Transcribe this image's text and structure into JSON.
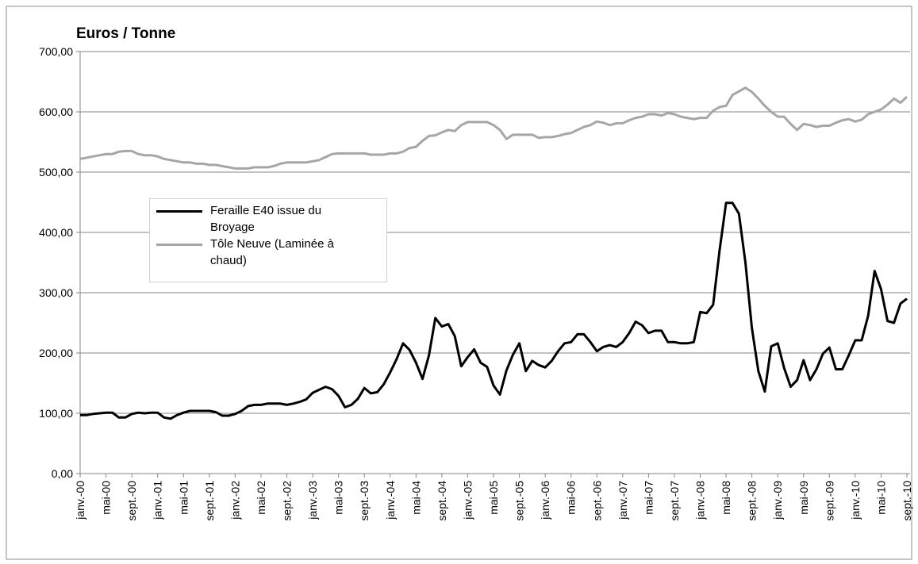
{
  "chart_data": {
    "type": "line",
    "title": "Euros / Tonne",
    "categories": [
      "janv.-00",
      null,
      null,
      null,
      "mai-00",
      null,
      null,
      null,
      "sept.-00",
      null,
      null,
      null,
      "janv.-01",
      null,
      null,
      null,
      "mai-01",
      null,
      null,
      null,
      "sept.-01",
      null,
      null,
      null,
      "janv.-02",
      null,
      null,
      null,
      "mai-02",
      null,
      null,
      null,
      "sept.-02",
      null,
      null,
      null,
      "janv.-03",
      null,
      null,
      null,
      "mai-03",
      null,
      null,
      null,
      "sept.-03",
      null,
      null,
      null,
      "janv.-04",
      null,
      null,
      null,
      "mai-04",
      null,
      null,
      null,
      "sept.-04",
      null,
      null,
      null,
      "janv.-05",
      null,
      null,
      null,
      "mai-05",
      null,
      null,
      null,
      "sept.-05",
      null,
      null,
      null,
      "janv.-06",
      null,
      null,
      null,
      "mai-06",
      null,
      null,
      null,
      "sept.-06",
      null,
      null,
      null,
      "janv.-07",
      null,
      null,
      null,
      "mai-07",
      null,
      null,
      null,
      "sept.-07",
      null,
      null,
      null,
      "janv.-08",
      null,
      null,
      null,
      "mai-08",
      null,
      null,
      null,
      "sept.-08",
      null,
      null,
      null,
      "janv.-09",
      null,
      null,
      null,
      "mai-09",
      null,
      null,
      null,
      "sept.-09",
      null,
      null,
      null,
      "janv.-10",
      null,
      null,
      null,
      "mai-10",
      null,
      null,
      null,
      "sept.-10"
    ],
    "series": [
      {
        "name": "Feraille E40 issue du Broyage",
        "color": "#000000",
        "values": [
          97,
          97,
          99,
          100,
          101,
          101,
          93,
          93,
          99,
          101,
          100,
          101,
          101,
          93,
          91,
          97,
          101,
          104,
          104,
          104,
          104,
          102,
          96,
          96,
          99,
          104,
          112,
          114,
          114,
          116,
          116,
          116,
          114,
          116,
          119,
          123,
          134,
          139,
          144,
          140,
          129,
          110,
          114,
          124,
          142,
          133,
          135,
          148,
          168,
          190,
          216,
          205,
          184,
          157,
          196,
          258,
          244,
          248,
          228,
          178,
          193,
          206,
          184,
          177,
          146,
          131,
          171,
          197,
          216,
          170,
          187,
          180,
          176,
          187,
          203,
          216,
          218,
          231,
          231,
          218,
          203,
          210,
          213,
          210,
          218,
          233,
          252,
          246,
          233,
          237,
          237,
          218,
          218,
          216,
          216,
          218,
          268,
          266,
          280,
          370,
          449,
          449,
          431,
          350,
          242,
          170,
          136,
          211,
          216,
          175,
          144,
          155,
          188,
          155,
          173,
          199,
          209,
          173,
          173,
          196,
          221,
          221,
          262,
          336,
          306,
          253,
          250,
          282,
          290
        ]
      },
      {
        "name": "Tôle Neuve (Laminée à chaud)",
        "color": "#a6a6a6",
        "values": [
          522,
          524,
          526,
          528,
          530,
          530,
          534,
          535,
          535,
          530,
          528,
          528,
          526,
          522,
          520,
          518,
          516,
          516,
          514,
          514,
          512,
          512,
          510,
          508,
          506,
          506,
          506,
          508,
          508,
          508,
          510,
          514,
          516,
          516,
          516,
          516,
          518,
          520,
          525,
          530,
          531,
          531,
          531,
          531,
          531,
          529,
          529,
          529,
          531,
          531,
          534,
          540,
          542,
          552,
          560,
          561,
          566,
          570,
          568,
          578,
          583,
          583,
          583,
          583,
          578,
          570,
          555,
          562,
          562,
          562,
          562,
          557,
          558,
          558,
          560,
          563,
          565,
          570,
          575,
          578,
          584,
          582,
          578,
          581,
          581,
          586,
          590,
          592,
          596,
          596,
          594,
          598,
          596,
          592,
          590,
          588,
          590,
          590,
          602,
          608,
          610,
          628,
          634,
          640,
          633,
          622,
          610,
          600,
          592,
          592,
          580,
          570,
          580,
          578,
          575,
          577,
          577,
          582,
          586,
          588,
          584,
          587,
          596,
          600,
          604,
          612,
          622,
          615,
          625
        ]
      }
    ],
    "ylim": [
      0,
      700
    ],
    "yticks": [
      {
        "value": 0,
        "label": "0,00"
      },
      {
        "value": 100,
        "label": "100,00"
      },
      {
        "value": 200,
        "label": "200,00"
      },
      {
        "value": 300,
        "label": "300,00"
      },
      {
        "value": 400,
        "label": "400,00"
      },
      {
        "value": 500,
        "label": "500,00"
      },
      {
        "value": 600,
        "label": "600,00"
      },
      {
        "value": 700,
        "label": "700,00"
      }
    ],
    "grid": true
  }
}
